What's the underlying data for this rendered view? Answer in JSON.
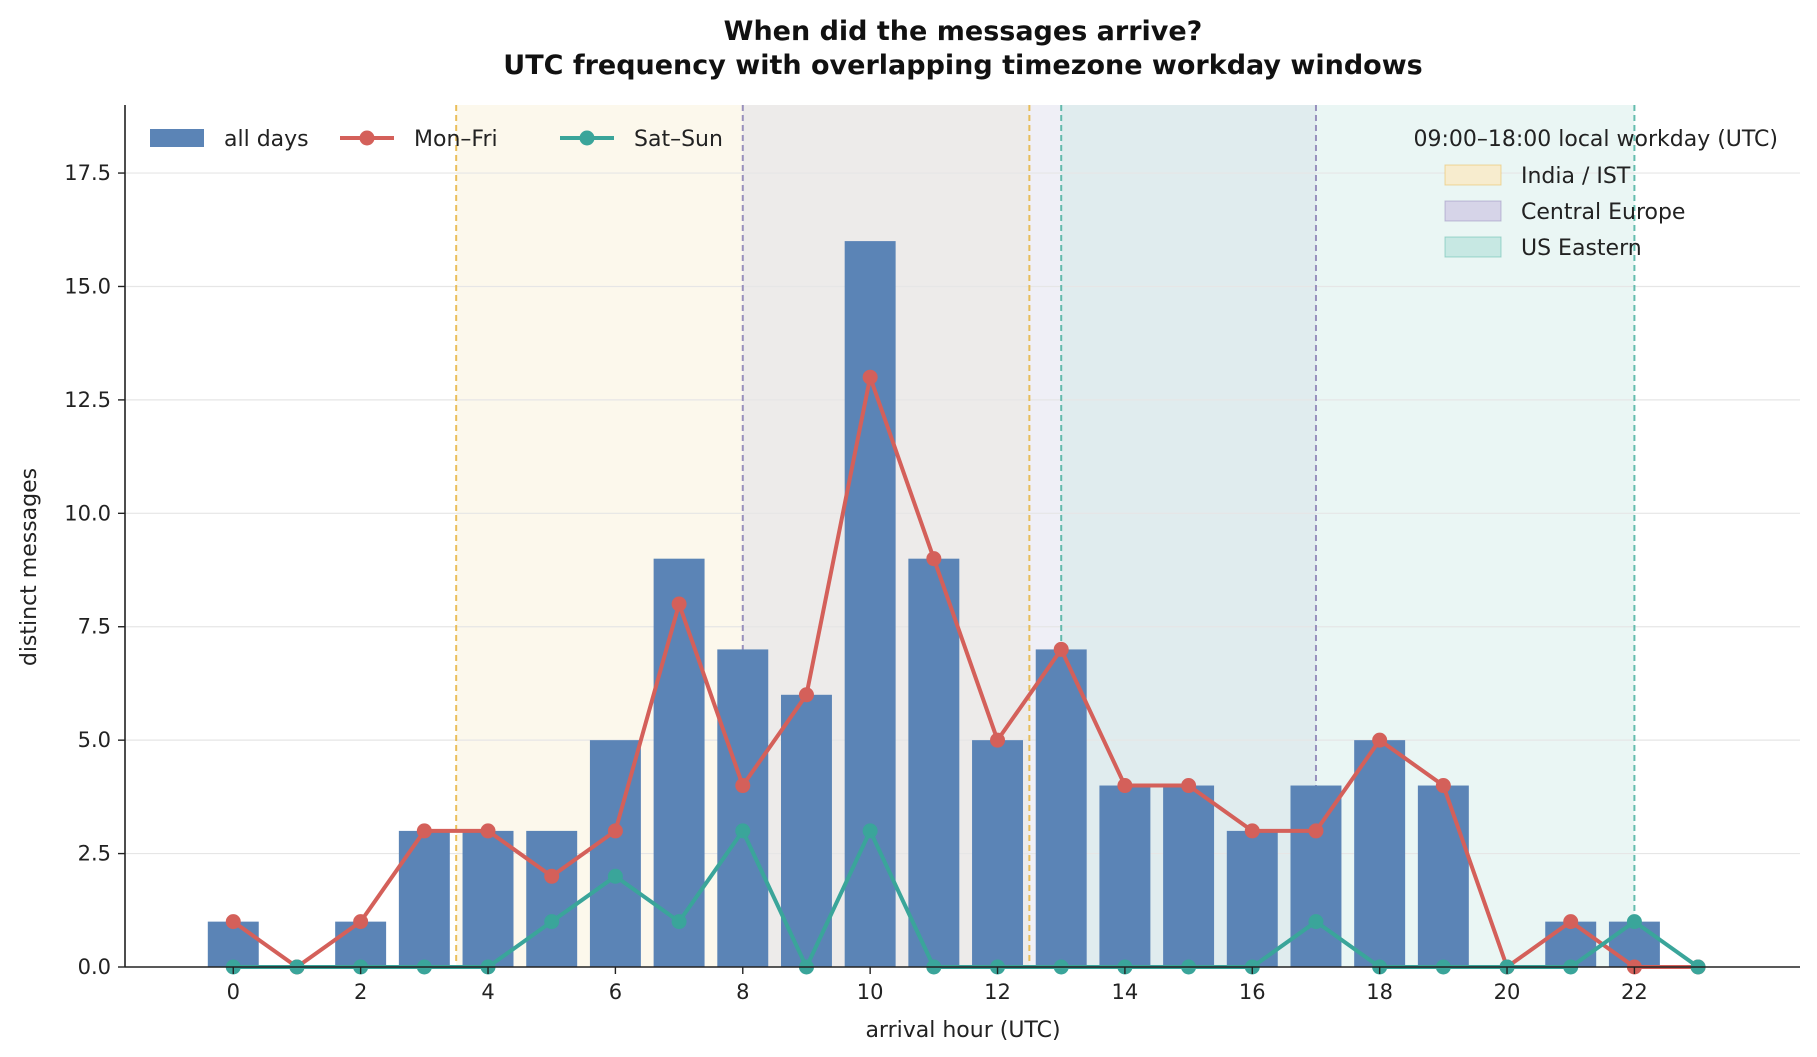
{
  "chart_data": {
    "type": "bar",
    "title": "When did the messages arrive?",
    "subtitle": "UTC frequency with overlapping timezone workday windows",
    "xlabel": "arrival hour (UTC)",
    "ylabel": "distinct messages",
    "xlim": [
      -1.7,
      24.6
    ],
    "ylim": [
      0,
      19
    ],
    "x_ticks": [
      0,
      2,
      4,
      6,
      8,
      10,
      12,
      14,
      16,
      18,
      20,
      22
    ],
    "y_ticks": [
      0,
      2.5,
      5,
      7.5,
      10,
      12.5,
      15,
      17.5
    ],
    "x_tick_labels": [
      "0",
      "2",
      "4",
      "6",
      "8",
      "10",
      "12",
      "14",
      "16",
      "18",
      "20",
      "22"
    ],
    "y_tick_labels": [
      "0.0",
      "2.5",
      "5.0",
      "7.5",
      "10.0",
      "12.5",
      "15.0",
      "17.5"
    ],
    "grid": "horizontal",
    "x": [
      0,
      1,
      2,
      3,
      4,
      5,
      6,
      7,
      8,
      9,
      10,
      11,
      12,
      13,
      14,
      15,
      16,
      17,
      18,
      19,
      20,
      21,
      22,
      23
    ],
    "series": [
      {
        "name": "all days",
        "kind": "bar",
        "color": "#5b84b6",
        "values": [
          1,
          0,
          1,
          3,
          3,
          3,
          5,
          9,
          7,
          6,
          16,
          9,
          5,
          7,
          4,
          4,
          3,
          4,
          5,
          4,
          0,
          1,
          1,
          0
        ]
      },
      {
        "name": "Mon–Fri",
        "kind": "line",
        "color": "#d4605a",
        "values": [
          1,
          0,
          1,
          3,
          3,
          2,
          3,
          8,
          4,
          6,
          13,
          9,
          5,
          7,
          4,
          4,
          3,
          3,
          5,
          4,
          0,
          1,
          0,
          0
        ]
      },
      {
        "name": "Sat–Sun",
        "kind": "line",
        "color": "#3aa59a",
        "values": [
          0,
          0,
          0,
          0,
          0,
          1,
          2,
          1,
          3,
          0,
          3,
          0,
          0,
          0,
          0,
          0,
          0,
          1,
          0,
          0,
          0,
          0,
          1,
          0
        ]
      }
    ],
    "workday_windows": {
      "title": "09:00–18:00 local workday (UTC)",
      "legend_position": "top-right",
      "regions": [
        {
          "name": "India / IST",
          "start": 3.5,
          "end": 12.5,
          "color": "#e8b84a",
          "fill": "#f7ecce"
        },
        {
          "name": "Central Europe",
          "start": 8,
          "end": 17,
          "color": "#8f86b8",
          "fill": "#d6d4e8"
        },
        {
          "name": "US Eastern",
          "start": 13,
          "end": 22,
          "color": "#55b5a6",
          "fill": "#c7e8e3"
        }
      ]
    },
    "legend_position": "top-left"
  }
}
